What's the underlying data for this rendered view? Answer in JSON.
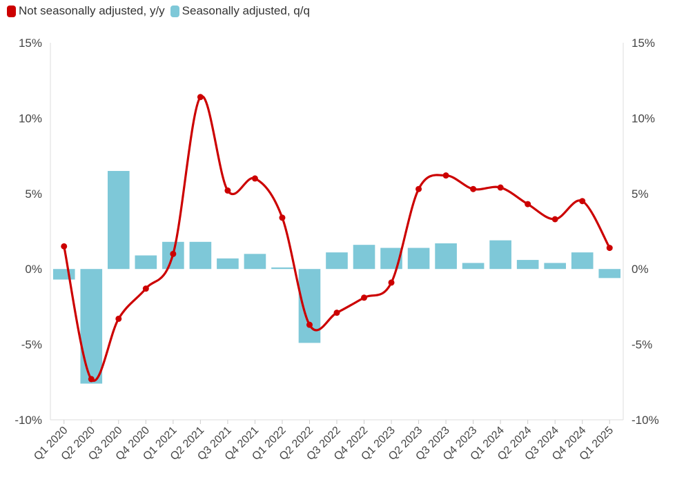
{
  "chart_data": {
    "type": "bar",
    "categories": [
      "Q1 2020",
      "Q2 2020",
      "Q3 2020",
      "Q4 2020",
      "Q1 2021",
      "Q2 2021",
      "Q3 2021",
      "Q4 2021",
      "Q1 2022",
      "Q2 2022",
      "Q3 2022",
      "Q4 2022",
      "Q1 2023",
      "Q2 2023",
      "Q3 2023",
      "Q4 2023",
      "Q1 2024",
      "Q2 2024",
      "Q3 2024",
      "Q4 2024",
      "Q1 2025"
    ],
    "series": [
      {
        "name": "Not seasonally adjusted, y/y",
        "type": "line",
        "color": "#cc0000",
        "values": [
          1.5,
          -7.3,
          -3.3,
          -1.3,
          1.0,
          11.4,
          5.2,
          6.0,
          3.4,
          -3.7,
          -2.9,
          -1.9,
          -0.9,
          5.3,
          6.2,
          5.3,
          5.4,
          4.3,
          3.3,
          4.5,
          1.4
        ]
      },
      {
        "name": "Seasonally adjusted, q/q",
        "type": "bar",
        "color": "#7ec8d8",
        "values": [
          -0.7,
          -7.6,
          6.5,
          0.9,
          1.8,
          1.8,
          0.7,
          1.0,
          0.1,
          -4.9,
          1.1,
          1.6,
          1.4,
          1.4,
          1.7,
          0.4,
          1.9,
          0.6,
          0.4,
          1.1,
          -0.6
        ]
      }
    ],
    "y_ticks": [
      "15%",
      "10%",
      "5%",
      "0%",
      "-5%",
      "-10%"
    ],
    "y2_ticks": [
      "15%",
      "10%",
      "5%",
      "0%",
      "-5%",
      "-10%"
    ],
    "ylim": [
      -10,
      15
    ],
    "legend_position": "top-left",
    "grid": false
  }
}
